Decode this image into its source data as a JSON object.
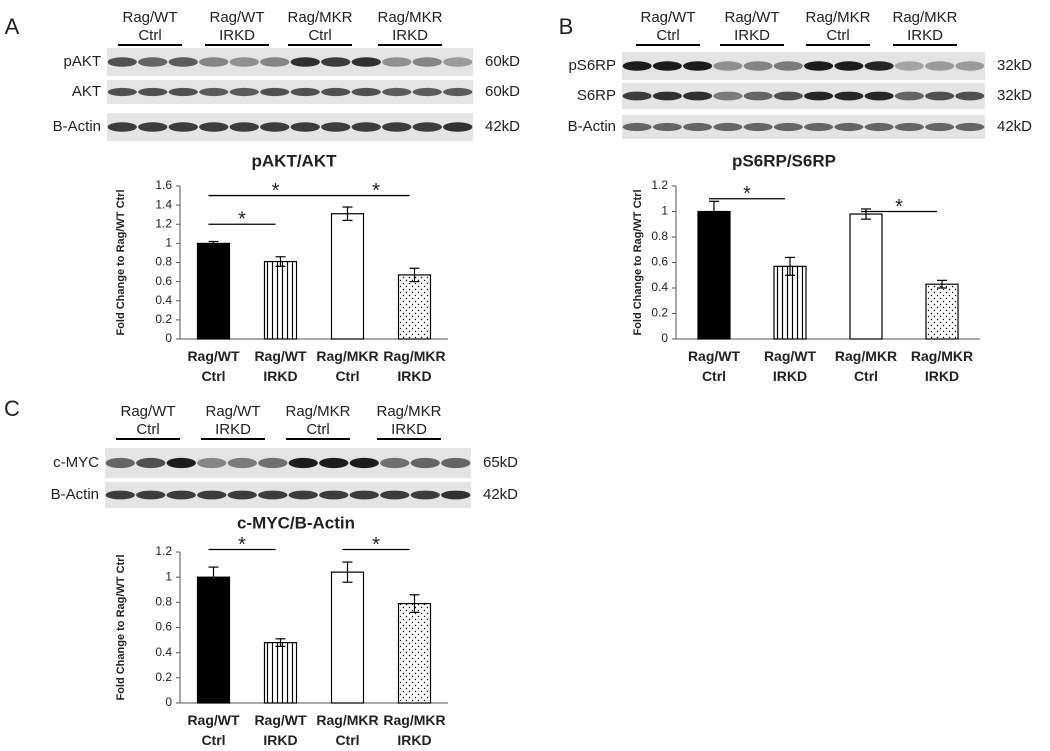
{
  "panels": [
    {
      "label": "A",
      "groups": [
        "Rag/WT Ctrl",
        "Rag/WT IRKD",
        "Rag/MKR Ctrl",
        "Rag/MKR IRKD"
      ],
      "rows": [
        {
          "name": "pAKT",
          "size": "60kD"
        },
        {
          "name": "AKT",
          "size": "60kD"
        },
        {
          "name": "B-Actin",
          "size": "42kD"
        }
      ]
    },
    {
      "label": "B",
      "groups": [
        "Rag/WT Ctrl",
        "Rag/WT IRKD",
        "Rag/MKR Ctrl",
        "Rag/MKR IRKD"
      ],
      "rows": [
        {
          "name": "pS6RP",
          "size": "32kD"
        },
        {
          "name": "S6RP",
          "size": "32kD"
        },
        {
          "name": "B-Actin",
          "size": "42kD"
        }
      ]
    },
    {
      "label": "C",
      "groups": [
        "Rag/WT Ctrl",
        "Rag/WT IRKD",
        "Rag/MKR Ctrl",
        "Rag/MKR IRKD"
      ],
      "rows": [
        {
          "name": "c-MYC",
          "size": "65kD"
        },
        {
          "name": "B-Actin",
          "size": "42kD"
        }
      ]
    }
  ],
  "chart_data": [
    {
      "type": "bar",
      "title": "pAKT/AKT",
      "y_label": "Fold Change to Rag/WT Ctrl",
      "categories": [
        "Rag/WT Ctrl",
        "Rag/WT IRKD",
        "Rag/MKR Ctrl",
        "Rag/MKR IRKD"
      ],
      "values": [
        1.0,
        0.81,
        1.31,
        0.67
      ],
      "errors": [
        0.02,
        0.05,
        0.07,
        0.07
      ],
      "fills": [
        "solid",
        "stripes",
        "open",
        "dots"
      ],
      "ylim": [
        0,
        1.6
      ],
      "yticks": [
        0,
        0.2,
        0.4,
        0.6,
        0.8,
        1,
        1.2,
        1.4,
        1.6
      ],
      "annotations": [
        {
          "text": "*",
          "from": 0,
          "to": 1,
          "y": 1.2
        },
        {
          "text": "*",
          "from": 0,
          "to": 2,
          "y": 1.5
        },
        {
          "text": "*",
          "from": 2,
          "to": 3,
          "y": 1.5
        }
      ]
    },
    {
      "type": "bar",
      "title": "pS6RP/S6RP",
      "y_label": "Fold Change to Rag/WT Ctrl",
      "categories": [
        "Rag/WT Ctrl",
        "Rag/WT IRKD",
        "Rag/MKR Ctrl",
        "Rag/MKR IRKD"
      ],
      "values": [
        1.0,
        0.57,
        0.98,
        0.43
      ],
      "errors": [
        0.08,
        0.07,
        0.04,
        0.03
      ],
      "fills": [
        "solid",
        "stripes",
        "open",
        "dots"
      ],
      "ylim": [
        0,
        1.2
      ],
      "yticks": [
        0,
        0.2,
        0.4,
        0.6,
        0.8,
        1,
        1.2
      ],
      "annotations": [
        {
          "text": "*",
          "from": 0,
          "to": 1,
          "y": 1.1
        },
        {
          "text": "*",
          "from": 2,
          "to": 3,
          "y": 1.0
        }
      ]
    },
    {
      "type": "bar",
      "title": "c-MYC/B-Actin",
      "y_label": "Fold Change to Rag/WT Ctrl",
      "categories": [
        "Rag/WT Ctrl",
        "Rag/WT IRKD",
        "Rag/MKR Ctrl",
        "Rag/MKR IRKD"
      ],
      "values": [
        1.0,
        0.48,
        1.04,
        0.79
      ],
      "errors": [
        0.08,
        0.03,
        0.08,
        0.07
      ],
      "fills": [
        "solid",
        "stripes",
        "open",
        "dots"
      ],
      "ylim": [
        0,
        1.2
      ],
      "yticks": [
        0,
        0.2,
        0.4,
        0.6,
        0.8,
        1,
        1.2
      ],
      "annotations": [
        {
          "text": "*",
          "from": 0,
          "to": 1,
          "y": 1.22
        },
        {
          "text": "*",
          "from": 2,
          "to": 3,
          "y": 1.22
        }
      ]
    }
  ]
}
